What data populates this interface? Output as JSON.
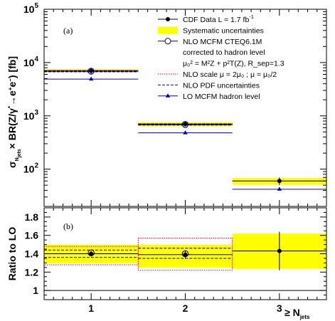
{
  "colors": {
    "syst_band": "#ffff00",
    "data": "#000000",
    "nlo": "#00008b",
    "lo": "#0000cd",
    "scale": "#e8001c",
    "pdf": "#00008b",
    "frame": "#000000"
  },
  "chart_data": [
    {
      "type": "scatter",
      "panel_label": "(a)",
      "ylabel_parts": [
        "σ",
        "N",
        "jets",
        "× BR(Z/γ",
        "*",
        "→e",
        "+",
        "e",
        "−",
        ") [fb]"
      ],
      "y_scale": "log",
      "ylim": [
        20,
        100000
      ],
      "xlim": [
        0.5,
        3.5
      ],
      "ytick_labels": [
        {
          "value": 100,
          "base": "10",
          "exp": "2"
        },
        {
          "value": 1000,
          "base": "10",
          "exp": "3"
        },
        {
          "value": 10000,
          "base": "10",
          "exp": "4"
        },
        {
          "value": 100000,
          "base": "10",
          "exp": "5"
        }
      ],
      "legend": {
        "placement": "top-right",
        "entries": [
          {
            "key": "data",
            "text": "CDF Data  L = 1.7 fb",
            "sup": "-1"
          },
          {
            "key": "syst",
            "text": "Systematic uncertainties"
          },
          {
            "key": "nlo",
            "text": "NLO MCFM CTEQ6.1M"
          },
          {
            "key": "none",
            "text": "corrected to hadron level"
          },
          {
            "key": "none",
            "text": "μ₀² = M²Z + p²T(Z), R_sep=1.3"
          },
          {
            "key": "scale",
            "text": "NLO scale μ = 2μ₀ ; μ = μ₀/2"
          },
          {
            "key": "pdf",
            "text": "NLO PDF uncertainties"
          },
          {
            "key": "lo",
            "text": "LO MCFM hadron level"
          }
        ]
      },
      "x": [
        1,
        2,
        3
      ],
      "series": [
        {
          "name": "CDF Data  L = 1.7 fb-1",
          "values": [
            7000,
            700,
            60
          ],
          "err_lo": [
            6200,
            630,
            50
          ],
          "err_hi": [
            7800,
            780,
            70
          ]
        },
        {
          "name": "Systematic uncertainties",
          "lo": [
            6500,
            640,
            52
          ],
          "hi": [
            7600,
            760,
            68
          ]
        },
        {
          "name": "NLO MCFM CTEQ6.1M",
          "values": [
            6900,
            690,
            null
          ]
        },
        {
          "name": "NLO scale μ = 2μ0 ; μ = μ0/2",
          "lo": [
            6800,
            680,
            null
          ],
          "hi": [
            7100,
            710,
            null
          ]
        },
        {
          "name": "NLO PDF uncertainties",
          "lo": [
            6700,
            670,
            null
          ],
          "hi": [
            7050,
            705,
            null
          ]
        },
        {
          "name": "LO MCFM hadron level",
          "values": [
            4900,
            480,
            42
          ]
        }
      ]
    },
    {
      "type": "scatter",
      "panel_label": "(b)",
      "ylabel": "Ratio to LO",
      "xlabel_parts": [
        "≥ N",
        "jets"
      ],
      "ylim": [
        0.9,
        1.9
      ],
      "xlim": [
        0.5,
        3.5
      ],
      "ytick_labels": [
        "1",
        "1.2",
        "1.4",
        "1.6",
        "1.8"
      ],
      "yticks": [
        1,
        1.2,
        1.4,
        1.6,
        1.8
      ],
      "xtick_labels": [
        "1",
        "2",
        "3"
      ],
      "x": [
        1,
        2,
        3
      ],
      "series": [
        {
          "name": "CDF Data",
          "values": [
            1.4,
            1.39,
            1.43
          ],
          "err_lo": [
            1.37,
            1.35,
            1.22
          ],
          "err_hi": [
            1.43,
            1.43,
            1.64
          ]
        },
        {
          "name": "Systematic uncertainties",
          "lo": [
            1.3,
            1.25,
            1.24
          ],
          "hi": [
            1.5,
            1.5,
            1.62
          ]
        },
        {
          "name": "NLO MCFM",
          "values": [
            1.41,
            1.4,
            null
          ]
        },
        {
          "name": "NLO scale",
          "lo": [
            1.28,
            1.22,
            null
          ],
          "hi": [
            1.48,
            1.57,
            null
          ]
        },
        {
          "name": "NLO PDF",
          "lo": [
            1.36,
            1.35,
            null
          ],
          "hi": [
            1.44,
            1.46,
            null
          ]
        }
      ]
    }
  ]
}
